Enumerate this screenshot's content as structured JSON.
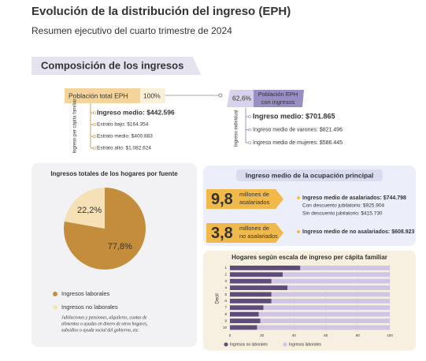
{
  "header": {
    "title": "Evolución de la distribución del ingreso (EPH)",
    "subtitle": "Resumen ejecutivo del cuarto trimestre de 2024"
  },
  "composition": {
    "title": "Composición de los ingresos",
    "total": {
      "label": "Población total EPH",
      "share": "100%",
      "axis_label": "Ingreso per cápita familiar",
      "items": [
        "Ingreso medio: $442.596",
        "Estrato bajo: $164.354",
        "Estrato medio: $400.883",
        "Estrato alto: $1.082.624"
      ]
    },
    "earners": {
      "share": "62,6%",
      "label": [
        "Población EPH",
        "con ingresos"
      ],
      "axis_label": "Ingreso individual",
      "items": [
        "Ingreso medio: $701.865",
        "Ingreso medio de varones: $821.496",
        "Ingreso medio de mujeres: $586.445"
      ]
    }
  },
  "occupation": {
    "title": "Ingreso medio de la ocupación principal",
    "groups": [
      {
        "number": "9,8",
        "unit": [
          "millones de",
          "asalariados"
        ],
        "items": [
          "Ingreso medio de asalariados: $744.798",
          "Con descuento jubilatorio: $925.904",
          "Sin descuento jubilatorio: $415.730"
        ]
      },
      {
        "number": "3,8",
        "unit": [
          "millones de",
          "no asalariados"
        ],
        "items": [
          "Ingreso medio de no asalariados: $608.923"
        ]
      }
    ]
  },
  "chart_data": [
    {
      "type": "pie",
      "title": "Ingresos totales de los hogares por fuente",
      "categories": [
        "Ingresos laborales",
        "Ingresos no laborales"
      ],
      "values": [
        77.8,
        22.2
      ],
      "value_labels": [
        "77,8%",
        "22,2%"
      ],
      "colors": [
        "#c48d3c",
        "#f6e0b6"
      ],
      "note": [
        "Jubilaciones y pensiones, alquileres, cuotas de",
        "alimentos o ayudas en dinero de otros hogares,",
        "subsidios o ayuda social del gobierno, etc."
      ]
    },
    {
      "type": "bar",
      "orientation": "horizontal",
      "stacked": true,
      "title": "Hogares según escala de ingreso per cápita familiar",
      "ylabel": "Decil",
      "categories": [
        "1",
        "2",
        "3",
        "4",
        "5",
        "6",
        "7",
        "8",
        "9",
        "10"
      ],
      "series": [
        {
          "name": "Ingresos no laborales",
          "color": "#5e4c7c",
          "values": [
            44,
            33,
            26,
            36,
            26,
            26,
            21,
            18,
            19,
            17
          ]
        },
        {
          "name": "Ingresos laborales",
          "color": "#cfc6e6",
          "values": [
            56,
            67,
            74,
            64,
            74,
            74,
            79,
            82,
            81,
            83
          ]
        }
      ],
      "xlim": [
        0,
        100
      ],
      "xticks": [
        0,
        20,
        40,
        60,
        80,
        100
      ]
    }
  ]
}
